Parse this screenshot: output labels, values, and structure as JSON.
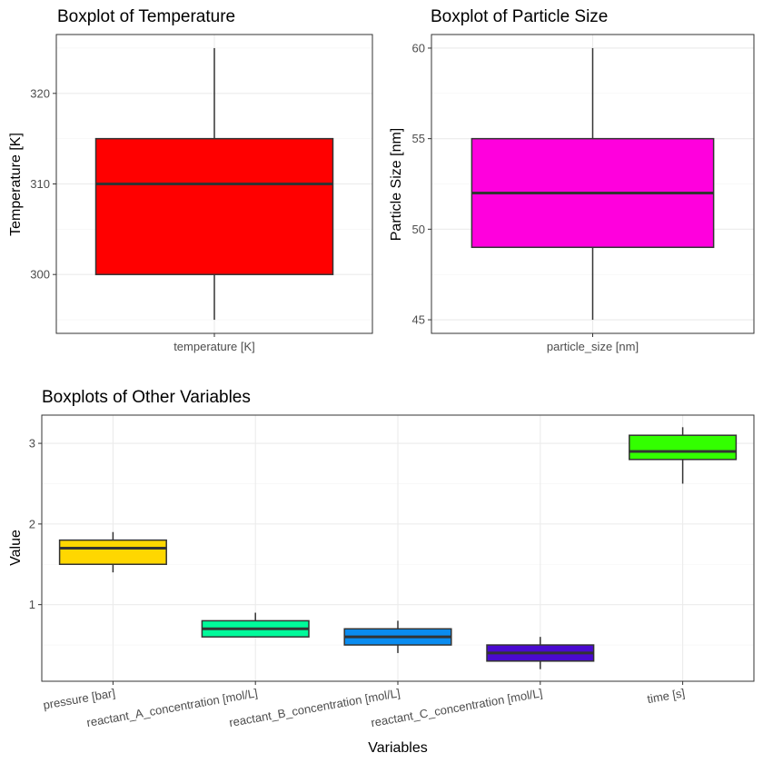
{
  "chart_data": [
    {
      "type": "boxplot",
      "title": "Boxplot of Temperature",
      "ylabel": "Temperature [K]",
      "xlabel": "",
      "ylim": [
        293.5,
        326.5
      ],
      "yticks": [
        300,
        310,
        320
      ],
      "yticks_minor": [
        295,
        305,
        315,
        325
      ],
      "grid": true,
      "categories": [
        "temperature [K]"
      ],
      "boxes": [
        {
          "label": "temperature [K]",
          "min": 295,
          "q1": 300,
          "median": 310,
          "q3": 315,
          "max": 325,
          "color": "#FF0000"
        }
      ]
    },
    {
      "type": "boxplot",
      "title": "Boxplot of Particle Size",
      "ylabel": "Particle Size [nm]",
      "xlabel": "",
      "ylim": [
        44.25,
        60.75
      ],
      "yticks": [
        45,
        50,
        55,
        60
      ],
      "yticks_minor": [
        47.5,
        52.5,
        57.5
      ],
      "grid": true,
      "categories": [
        "particle_size [nm]"
      ],
      "boxes": [
        {
          "label": "particle_size [nm]",
          "min": 45,
          "q1": 49,
          "median": 52,
          "q3": 55,
          "max": 60,
          "color": "#FF00DD"
        }
      ]
    },
    {
      "type": "boxplot",
      "title": "Boxplots of Other Variables",
      "ylabel": "Value",
      "xlabel": "Variables",
      "ylim": [
        0.05,
        3.35
      ],
      "yticks": [
        1,
        2,
        3
      ],
      "yticks_minor": [
        0.5,
        1.5,
        2.5
      ],
      "grid": true,
      "categories": [
        "pressure [bar]",
        "reactant_A_concentration [mol/L]",
        "reactant_B_concentration [mol/L]",
        "reactant_C_concentration [mol/L]",
        "time [s]"
      ],
      "boxes": [
        {
          "label": "pressure [bar]",
          "min": 1.4,
          "q1": 1.5,
          "median": 1.7,
          "q3": 1.8,
          "max": 1.9,
          "color": "#FFD700"
        },
        {
          "label": "reactant_A_concentration [mol/L]",
          "min": 0.6,
          "q1": 0.6,
          "median": 0.7,
          "q3": 0.8,
          "max": 0.9,
          "color": "#00FA9A"
        },
        {
          "label": "reactant_B_concentration [mol/L]",
          "min": 0.4,
          "q1": 0.5,
          "median": 0.6,
          "q3": 0.7,
          "max": 0.8,
          "color": "#0A8CF0"
        },
        {
          "label": "reactant_C_concentration [mol/L]",
          "min": 0.2,
          "q1": 0.3,
          "median": 0.4,
          "q3": 0.5,
          "max": 0.6,
          "color": "#4A0AD0"
        },
        {
          "label": "time [s]",
          "min": 2.5,
          "q1": 2.8,
          "median": 2.9,
          "q3": 3.1,
          "max": 3.2,
          "color": "#33FF00"
        }
      ]
    }
  ]
}
